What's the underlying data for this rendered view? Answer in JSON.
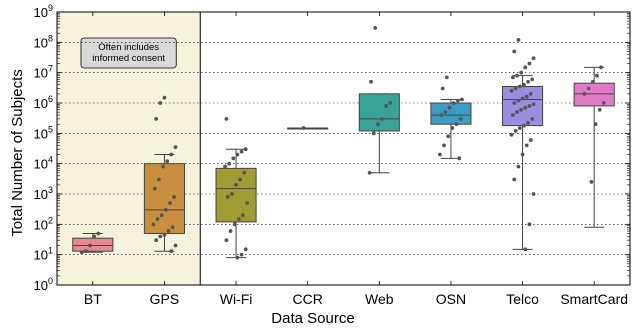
{
  "chart_data": {
    "type": "box",
    "xlabel": "Data Source",
    "ylabel": "Total Number of Subjects",
    "y_scale": "log",
    "ylim_exponent": [
      0,
      9
    ],
    "y_ticks": [
      {
        "base": "10",
        "exp": "0"
      },
      {
        "base": "10",
        "exp": "1"
      },
      {
        "base": "10",
        "exp": "2"
      },
      {
        "base": "10",
        "exp": "3"
      },
      {
        "base": "10",
        "exp": "4"
      },
      {
        "base": "10",
        "exp": "5"
      },
      {
        "base": "10",
        "exp": "6"
      },
      {
        "base": "10",
        "exp": "7"
      },
      {
        "base": "10",
        "exp": "8"
      },
      {
        "base": "10",
        "exp": "9"
      }
    ],
    "grid": "horizontal dotted",
    "highlight": {
      "categories": [
        "BT",
        "GPS"
      ],
      "color": "#f5f3dc",
      "label_lines": [
        "Often includes",
        "informed consent"
      ]
    },
    "categories": [
      "BT",
      "GPS",
      "Wi-Fi",
      "CCR",
      "Web",
      "OSN",
      "Telco",
      "SmartCard"
    ],
    "series": [
      {
        "color": "#e58a94",
        "whisker_low": 12,
        "q1": 13,
        "median": 20,
        "q3": 35,
        "whisker_high": 50,
        "points": [
          12,
          13,
          20,
          40,
          50
        ]
      },
      {
        "color": "#c98f3e",
        "whisker_low": 13,
        "q1": 50,
        "median": 300,
        "q3": 10000,
        "whisker_high": 20000,
        "points": [
          13,
          20,
          30,
          40,
          45,
          60,
          80,
          100,
          150,
          200,
          300,
          500,
          800,
          1500,
          3000,
          8000,
          12000,
          20000,
          35000,
          300000,
          1000000,
          1500000
        ]
      },
      {
        "color": "#9e9d31",
        "whisker_low": 8,
        "q1": 120,
        "median": 1500,
        "q3": 7000,
        "whisker_high": 30000,
        "points": [
          8,
          10,
          15,
          30,
          60,
          100,
          150,
          200,
          500,
          800,
          1000,
          2000,
          3000,
          5000,
          8000,
          10000,
          15000,
          20000,
          25000,
          30000,
          300000
        ]
      },
      {
        "color": "#cccccc",
        "whisker_low": 150000,
        "q1": 150000,
        "median": 150000,
        "q3": 150000,
        "whisker_high": 150000,
        "points": [
          150000
        ]
      },
      {
        "color": "#3aa39a",
        "whisker_low": 5000,
        "q1": 120000,
        "median": 300000,
        "q3": 2000000,
        "whisker_high": 2000000,
        "points": [
          5000,
          100000,
          200000,
          300000,
          800000,
          1000000,
          5000000,
          300000000
        ]
      },
      {
        "color": "#3b9ec4",
        "whisker_low": 15000,
        "q1": 200000,
        "median": 400000,
        "q3": 1000000,
        "whisker_high": 1300000,
        "points": [
          15000,
          20000,
          40000,
          80000,
          150000,
          200000,
          300000,
          400000,
          500000,
          700000,
          1000000,
          1200000,
          1300000,
          3000000,
          7000000
        ]
      },
      {
        "color": "#9a8ee0",
        "whisker_low": 15,
        "q1": 180000,
        "median": 1300000,
        "q3": 3500000,
        "whisker_high": 8000000,
        "points": [
          15,
          100,
          1000,
          3000,
          8000,
          20000,
          40000,
          60000,
          90000,
          120000,
          150000,
          180000,
          220000,
          300000,
          400000,
          500000,
          600000,
          700000,
          800000,
          900000,
          1000000,
          1200000,
          1400000,
          1600000,
          2000000,
          2500000,
          3000000,
          3500000,
          4000000,
          5000000,
          6000000,
          7000000,
          8000000,
          10000000,
          15000000,
          20000000,
          30000000,
          50000000,
          120000000
        ]
      },
      {
        "color": "#e27bc7",
        "whisker_low": 80,
        "q1": 800000,
        "median": 2000000,
        "q3": 4500000,
        "whisker_high": 15000000,
        "points": [
          2500,
          200000,
          600000,
          1000000,
          2000000,
          3000000,
          5000000,
          8000000,
          15000000
        ]
      }
    ]
  }
}
